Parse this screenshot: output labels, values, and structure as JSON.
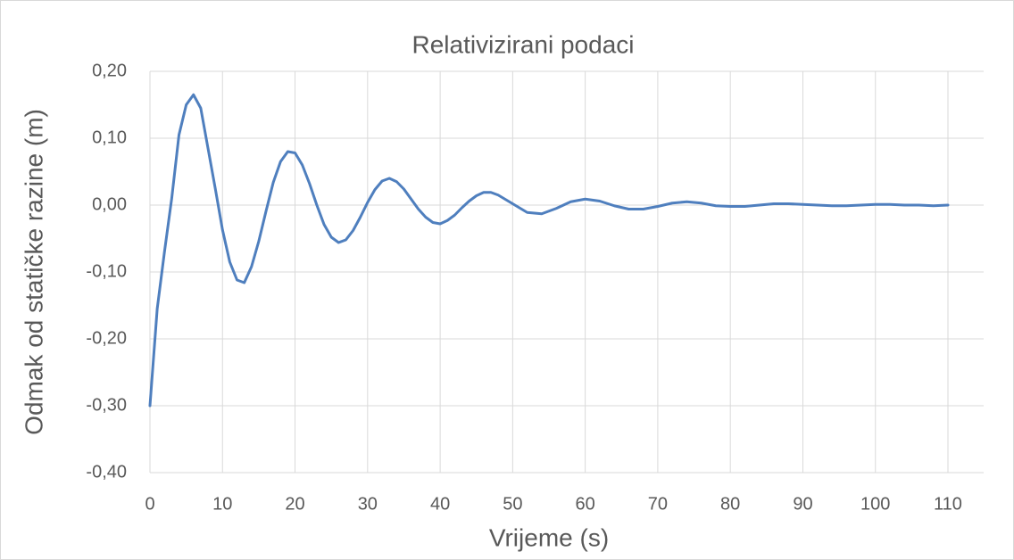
{
  "chart_data": {
    "type": "line",
    "title": "Relativizirani podaci",
    "xlabel": "Vrijeme (s)",
    "ylabel": "Odmak od statičke razine (m)",
    "color": "#4f7fbe",
    "x": [
      0,
      1,
      2,
      3,
      4,
      5,
      6,
      7,
      8,
      9,
      10,
      11,
      12,
      13,
      14,
      15,
      16,
      17,
      18,
      19,
      20,
      21,
      22,
      23,
      24,
      25,
      26,
      27,
      28,
      29,
      30,
      31,
      32,
      33,
      34,
      35,
      36,
      37,
      38,
      39,
      40,
      41,
      42,
      43,
      44,
      45,
      46,
      47,
      48,
      50,
      52,
      54,
      56,
      58,
      60,
      62,
      64,
      66,
      68,
      70,
      72,
      74,
      76,
      78,
      80,
      82,
      84,
      86,
      88,
      90,
      92,
      94,
      96,
      98,
      100,
      102,
      104,
      106,
      108,
      110
    ],
    "values": [
      -0.3,
      -0.155,
      -0.07,
      0.01,
      0.105,
      0.15,
      0.165,
      0.145,
      0.085,
      0.025,
      -0.037,
      -0.085,
      -0.112,
      -0.116,
      -0.092,
      -0.054,
      -0.009,
      0.034,
      0.065,
      0.08,
      0.078,
      0.06,
      0.032,
      0.0,
      -0.029,
      -0.048,
      -0.056,
      -0.052,
      -0.038,
      -0.018,
      0.004,
      0.023,
      0.036,
      0.04,
      0.035,
      0.024,
      0.009,
      -0.006,
      -0.018,
      -0.026,
      -0.028,
      -0.023,
      -0.015,
      -0.004,
      0.006,
      0.014,
      0.019,
      0.019,
      0.015,
      0.002,
      -0.011,
      -0.013,
      -0.005,
      0.005,
      0.009,
      0.006,
      -0.001,
      -0.006,
      -0.006,
      -0.002,
      0.003,
      0.005,
      0.003,
      -0.001,
      -0.002,
      -0.002,
      0.0,
      0.002,
      0.002,
      0.001,
      0.0,
      -0.001,
      -0.001,
      0.0,
      0.001,
      0.001,
      0.0,
      0.0,
      -0.001,
      0.0
    ],
    "xlim": [
      0,
      110
    ],
    "xticks": [
      0,
      10,
      20,
      30,
      40,
      50,
      60,
      70,
      80,
      90,
      100,
      110
    ],
    "ylim": [
      -0.4,
      0.2
    ],
    "yticks": [
      {
        "value": -0.4,
        "label": "-0,40"
      },
      {
        "value": -0.3,
        "label": "-0,30"
      },
      {
        "value": -0.2,
        "label": "-0,20"
      },
      {
        "value": -0.1,
        "label": "-0,10"
      },
      {
        "value": 0,
        "label": "0,00"
      },
      {
        "value": 0.1,
        "label": "0,10"
      },
      {
        "value": 0.2,
        "label": "0,20"
      }
    ],
    "grid": true
  }
}
